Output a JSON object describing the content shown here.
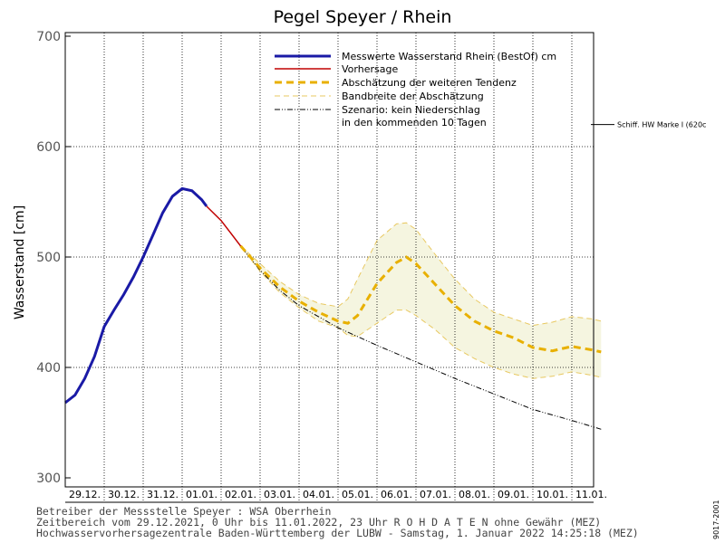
{
  "chart_data": {
    "type": "line",
    "title": "Pegel Speyer / Rhein",
    "ylabel": "Wasserstand [cm]",
    "ylim": [
      300,
      700
    ],
    "yticks": [
      300,
      400,
      500,
      600,
      700
    ],
    "x_unit": "days",
    "xlim": [
      "2021-12-29 00:00",
      "2022-01-12 00:00"
    ],
    "xticks": [
      "29.12.",
      "30.12.",
      "31.12.",
      "01.01.",
      "02.01.",
      "03.01.",
      "04.01.",
      "05.01.",
      "06.01.",
      "07.01.",
      "08.01.",
      "09.01.",
      "10.01.",
      "11.01."
    ],
    "grid": true,
    "legend_position": "top-right",
    "series": [
      {
        "name": "Messwerte Wasserstand Rhein (BestOf)  cm",
        "color": "#1a1aa6",
        "style": "solid-thick",
        "points": [
          [
            "2021-12-29 00:00",
            368
          ],
          [
            "2021-12-29 06:00",
            375
          ],
          [
            "2021-12-29 12:00",
            390
          ],
          [
            "2021-12-29 18:00",
            410
          ],
          [
            "2021-12-30 00:00",
            437
          ],
          [
            "2021-12-30 06:00",
            452
          ],
          [
            "2021-12-30 12:00",
            466
          ],
          [
            "2021-12-30 18:00",
            482
          ],
          [
            "2021-12-31 00:00",
            500
          ],
          [
            "2021-12-31 06:00",
            520
          ],
          [
            "2021-12-31 12:00",
            540
          ],
          [
            "2021-12-31 18:00",
            555
          ],
          [
            "2022-01-01 00:00",
            562
          ],
          [
            "2022-01-01 06:00",
            560
          ],
          [
            "2022-01-01 12:00",
            552
          ],
          [
            "2022-01-01 15:00",
            546
          ]
        ]
      },
      {
        "name": "Vorhersage",
        "color": "#c00000",
        "style": "solid",
        "points": [
          [
            "2022-01-01 15:00",
            546
          ],
          [
            "2022-01-02 00:00",
            533
          ],
          [
            "2022-01-02 12:00",
            510
          ]
        ]
      },
      {
        "name": "Abschätzung der weiteren Tendenz",
        "color": "#e8b000",
        "style": "dashed-thick",
        "points": [
          [
            "2022-01-02 12:00",
            510
          ],
          [
            "2022-01-03 00:00",
            490
          ],
          [
            "2022-01-03 12:00",
            473
          ],
          [
            "2022-01-04 00:00",
            460
          ],
          [
            "2022-01-04 12:00",
            450
          ],
          [
            "2022-01-05 00:00",
            442
          ],
          [
            "2022-01-05 06:00",
            440
          ],
          [
            "2022-01-05 12:00",
            447
          ],
          [
            "2022-01-06 00:00",
            476
          ],
          [
            "2022-01-06 12:00",
            495
          ],
          [
            "2022-01-06 18:00",
            500
          ],
          [
            "2022-01-07 00:00",
            494
          ],
          [
            "2022-01-07 12:00",
            475
          ],
          [
            "2022-01-08 00:00",
            456
          ],
          [
            "2022-01-08 12:00",
            442
          ],
          [
            "2022-01-09 00:00",
            433
          ],
          [
            "2022-01-09 12:00",
            427
          ],
          [
            "2022-01-10 00:00",
            418
          ],
          [
            "2022-01-10 12:00",
            415
          ],
          [
            "2022-01-11 00:00",
            419
          ],
          [
            "2022-01-11 12:00",
            416
          ],
          [
            "2022-01-11 18:00",
            414
          ]
        ]
      },
      {
        "name": "Bandbreite der Abschätzung",
        "color": "#e8c860",
        "style": "dashed-thin",
        "upper": [
          [
            "2022-01-02 12:00",
            510
          ],
          [
            "2022-01-03 00:00",
            494
          ],
          [
            "2022-01-03 12:00",
            478
          ],
          [
            "2022-01-04 00:00",
            466
          ],
          [
            "2022-01-04 12:00",
            458
          ],
          [
            "2022-01-05 00:00",
            455
          ],
          [
            "2022-01-05 06:00",
            462
          ],
          [
            "2022-01-05 12:00",
            480
          ],
          [
            "2022-01-06 00:00",
            515
          ],
          [
            "2022-01-06 12:00",
            530
          ],
          [
            "2022-01-06 18:00",
            531
          ],
          [
            "2022-01-07 00:00",
            525
          ],
          [
            "2022-01-07 12:00",
            502
          ],
          [
            "2022-01-08 00:00",
            480
          ],
          [
            "2022-01-08 12:00",
            462
          ],
          [
            "2022-01-09 00:00",
            450
          ],
          [
            "2022-01-09 12:00",
            444
          ],
          [
            "2022-01-10 00:00",
            438
          ],
          [
            "2022-01-10 12:00",
            441
          ],
          [
            "2022-01-11 00:00",
            446
          ],
          [
            "2022-01-11 12:00",
            444
          ],
          [
            "2022-01-11 18:00",
            442
          ]
        ],
        "lower": [
          [
            "2022-01-02 12:00",
            510
          ],
          [
            "2022-01-03 00:00",
            487
          ],
          [
            "2022-01-03 12:00",
            468
          ],
          [
            "2022-01-04 00:00",
            454
          ],
          [
            "2022-01-04 12:00",
            442
          ],
          [
            "2022-01-05 00:00",
            436
          ],
          [
            "2022-01-05 06:00",
            429
          ],
          [
            "2022-01-05 12:00",
            428
          ],
          [
            "2022-01-06 00:00",
            440
          ],
          [
            "2022-01-06 12:00",
            452
          ],
          [
            "2022-01-06 18:00",
            452
          ],
          [
            "2022-01-07 00:00",
            447
          ],
          [
            "2022-01-07 12:00",
            434
          ],
          [
            "2022-01-08 00:00",
            418
          ],
          [
            "2022-01-08 12:00",
            408
          ],
          [
            "2022-01-09 00:00",
            400
          ],
          [
            "2022-01-09 12:00",
            394
          ],
          [
            "2022-01-10 00:00",
            390
          ],
          [
            "2022-01-10 12:00",
            392
          ],
          [
            "2022-01-11 00:00",
            396
          ],
          [
            "2022-01-11 12:00",
            393
          ],
          [
            "2022-01-11 18:00",
            391
          ]
        ]
      },
      {
        "name": "Szenario: kein Niederschlag in den kommenden 10 Tagen",
        "color": "#000000",
        "style": "dashdot",
        "points": [
          [
            "2022-01-02 12:00",
            510
          ],
          [
            "2022-01-03 00:00",
            488
          ],
          [
            "2022-01-03 12:00",
            470
          ],
          [
            "2022-01-04 00:00",
            456
          ],
          [
            "2022-01-04 12:00",
            446
          ],
          [
            "2022-01-05 00:00",
            436
          ],
          [
            "2022-01-06 00:00",
            420
          ],
          [
            "2022-01-07 00:00",
            405
          ],
          [
            "2022-01-08 00:00",
            390
          ],
          [
            "2022-01-09 00:00",
            376
          ],
          [
            "2022-01-10 00:00",
            362
          ],
          [
            "2022-01-11 00:00",
            352
          ],
          [
            "2022-01-11 18:00",
            344
          ]
        ]
      }
    ],
    "reference_lines": [
      {
        "y": 620,
        "label": "Schiff. HW Marke I (620c"
      }
    ]
  },
  "legend": {
    "measured": "Messwerte Wasserstand Rhein (BestOf)  cm",
    "forecast": "Vorhersage",
    "tendency": "Abschätzung der weiteren Tendenz",
    "band": "Bandbreite der Abschätzung",
    "scenario_line1": "Szenario: kein Niederschlag",
    "scenario_line2": "in den kommenden 10 Tagen"
  },
  "colors": {
    "measured": "#1a1aa6",
    "forecast": "#c00000",
    "tendency": "#e8b000",
    "band_line": "#e8c860",
    "band_fill": "#f5f5e0",
    "scenario": "#000000"
  },
  "footer": {
    "line1": "Betreiber der Messstelle Speyer : WSA Oberrhein",
    "line2": "Zeitbereich vom 29.12.2021, 0 Uhr bis 11.01.2022, 23 Uhr   R O H D A T E N ohne Gewähr (MEZ)",
    "line3": "Hochwasservorhersagezentrale Baden-Württemberg der LUBW - Samstag, 1. Januar 2022 14:25:18 (MEZ)"
  },
  "side_code": "9017-2001"
}
